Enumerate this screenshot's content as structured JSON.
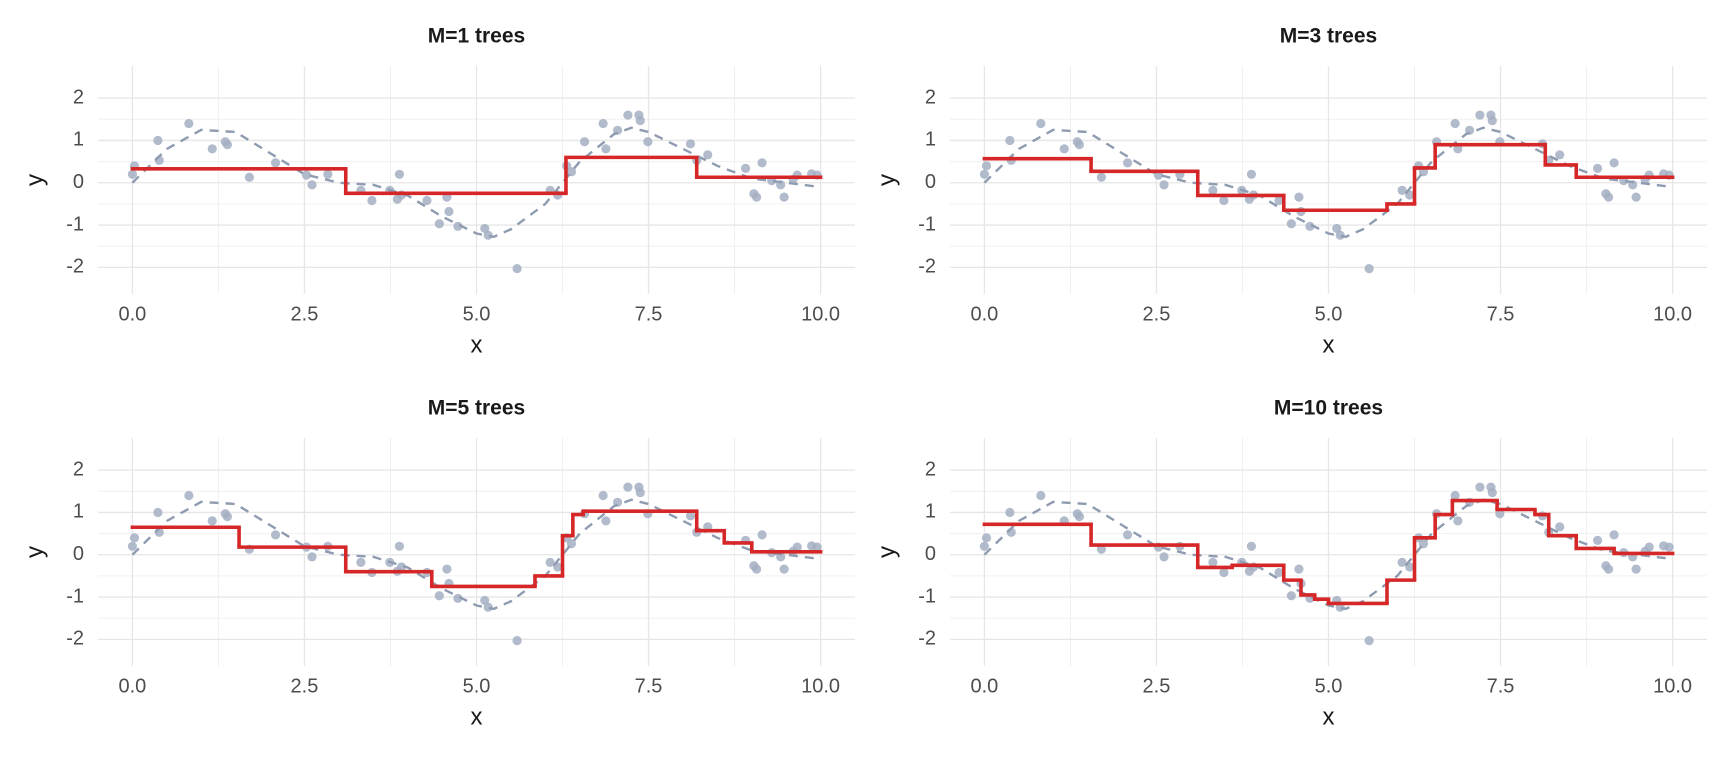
{
  "chart_data": [
    {
      "type": "line",
      "title": "M=1 trees",
      "x_label": "x",
      "y_label": "y",
      "grid": true,
      "xlim": [
        -0.5,
        10.5
      ],
      "ylim": [
        -2.63,
        2.76
      ],
      "xticks": [
        {
          "value": 0,
          "label": "0.0"
        },
        {
          "value": 2.5,
          "label": "2.5"
        },
        {
          "value": 5,
          "label": "5.0"
        },
        {
          "value": 7.5,
          "label": "7.5"
        },
        {
          "value": 10,
          "label": "10.0"
        }
      ],
      "yticks": [
        -2,
        -1,
        0,
        1,
        2
      ],
      "series": [
        {
          "style": "points",
          "color": "#a3afc2",
          "x": [
            0.0,
            0.03,
            0.37,
            0.39,
            0.82,
            1.16,
            1.35,
            1.38,
            1.7,
            2.08,
            2.53,
            2.61,
            2.84,
            3.32,
            3.48,
            3.74,
            3.85,
            3.88,
            3.91,
            4.28,
            4.46,
            4.57,
            4.6,
            4.73,
            5.12,
            5.17,
            5.59,
            6.07,
            6.18,
            6.31,
            6.38,
            6.57,
            6.84,
            6.88,
            7.05,
            7.2,
            7.36,
            7.38,
            7.49,
            8.11,
            8.2,
            8.36,
            8.91,
            9.03,
            9.07,
            9.15,
            9.29,
            9.42,
            9.47,
            9.6,
            9.66,
            9.87,
            9.95
          ],
          "values": [
            0.2,
            0.4,
            1.0,
            0.53,
            1.4,
            0.8,
            0.97,
            0.9,
            0.13,
            0.47,
            0.18,
            -0.05,
            0.2,
            -0.18,
            -0.42,
            -0.18,
            -0.39,
            0.2,
            -0.29,
            -0.42,
            -0.97,
            -0.34,
            -0.68,
            -1.03,
            -1.08,
            -1.24,
            -2.03,
            -0.18,
            -0.29,
            0.4,
            0.26,
            0.97,
            1.4,
            0.8,
            1.24,
            1.6,
            1.6,
            1.47,
            0.97,
            0.92,
            0.53,
            0.66,
            0.34,
            -0.26,
            -0.34,
            0.47,
            0.05,
            -0.05,
            -0.34,
            0.08,
            0.18,
            0.21,
            0.18
          ]
        },
        {
          "style": "dashed",
          "color": "#8e9bb0",
          "x": [
            0,
            0.5,
            1,
            1.5,
            2,
            2.5,
            3,
            3.5,
            4,
            4.5,
            5,
            5.25,
            5.5,
            6,
            6.5,
            7,
            7.25,
            7.5,
            8,
            8.5,
            9,
            9.5,
            10
          ],
          "values": [
            0,
            0.8,
            1.25,
            1.2,
            0.7,
            0.2,
            0.0,
            -0.05,
            -0.3,
            -0.8,
            -1.2,
            -1.28,
            -1.1,
            -0.5,
            0.5,
            1.15,
            1.3,
            1.2,
            0.8,
            0.4,
            0.1,
            0.0,
            -0.1
          ]
        },
        {
          "style": "step",
          "color": "#d62728",
          "bins": [
            0,
            3.1,
            6.3,
            8.2,
            10
          ],
          "values": [
            0.33,
            -0.25,
            0.6,
            0.13
          ]
        }
      ]
    },
    {
      "type": "line",
      "title": "M=3 trees",
      "x_label": "x",
      "y_label": "y",
      "grid": true,
      "xlim": [
        -0.5,
        10.5
      ],
      "ylim": [
        -2.63,
        2.76
      ],
      "xticks": [
        {
          "value": 0,
          "label": "0.0"
        },
        {
          "value": 2.5,
          "label": "2.5"
        },
        {
          "value": 5,
          "label": "5.0"
        },
        {
          "value": 7.5,
          "label": "7.5"
        },
        {
          "value": 10,
          "label": "10.0"
        }
      ],
      "yticks": [
        -2,
        -1,
        0,
        1,
        2
      ],
      "series": [
        {
          "style": "points",
          "color": "#a3afc2",
          "x": [
            0.0,
            0.03,
            0.37,
            0.39,
            0.82,
            1.16,
            1.35,
            1.38,
            1.7,
            2.08,
            2.53,
            2.61,
            2.84,
            3.32,
            3.48,
            3.74,
            3.85,
            3.88,
            3.91,
            4.28,
            4.46,
            4.57,
            4.6,
            4.73,
            5.12,
            5.17,
            5.59,
            6.07,
            6.18,
            6.31,
            6.38,
            6.57,
            6.84,
            6.88,
            7.05,
            7.2,
            7.36,
            7.38,
            7.49,
            8.11,
            8.2,
            8.36,
            8.91,
            9.03,
            9.07,
            9.15,
            9.29,
            9.42,
            9.47,
            9.6,
            9.66,
            9.87,
            9.95
          ],
          "values": [
            0.2,
            0.4,
            1.0,
            0.53,
            1.4,
            0.8,
            0.97,
            0.9,
            0.13,
            0.47,
            0.18,
            -0.05,
            0.2,
            -0.18,
            -0.42,
            -0.18,
            -0.39,
            0.2,
            -0.29,
            -0.42,
            -0.97,
            -0.34,
            -0.68,
            -1.03,
            -1.08,
            -1.24,
            -2.03,
            -0.18,
            -0.29,
            0.4,
            0.26,
            0.97,
            1.4,
            0.8,
            1.24,
            1.6,
            1.6,
            1.47,
            0.97,
            0.92,
            0.53,
            0.66,
            0.34,
            -0.26,
            -0.34,
            0.47,
            0.05,
            -0.05,
            -0.34,
            0.08,
            0.18,
            0.21,
            0.18
          ]
        },
        {
          "style": "dashed",
          "color": "#8e9bb0",
          "x": [
            0,
            0.5,
            1,
            1.5,
            2,
            2.5,
            3,
            3.5,
            4,
            4.5,
            5,
            5.25,
            5.5,
            6,
            6.5,
            7,
            7.25,
            7.5,
            8,
            8.5,
            9,
            9.5,
            10
          ],
          "values": [
            0,
            0.8,
            1.25,
            1.2,
            0.7,
            0.2,
            0.0,
            -0.05,
            -0.3,
            -0.8,
            -1.2,
            -1.28,
            -1.1,
            -0.5,
            0.5,
            1.15,
            1.3,
            1.2,
            0.8,
            0.4,
            0.1,
            0.0,
            -0.1
          ]
        },
        {
          "style": "step",
          "color": "#d62728",
          "bins": [
            0,
            1.55,
            3.1,
            4.35,
            5.85,
            6.25,
            6.55,
            8.15,
            8.6,
            10
          ],
          "values": [
            0.57,
            0.27,
            -0.3,
            -0.65,
            -0.5,
            0.35,
            0.9,
            0.42,
            0.13
          ]
        }
      ]
    },
    {
      "type": "line",
      "title": "M=5 trees",
      "x_label": "x",
      "y_label": "y",
      "grid": true,
      "xlim": [
        -0.5,
        10.5
      ],
      "ylim": [
        -2.63,
        2.76
      ],
      "xticks": [
        {
          "value": 0,
          "label": "0.0"
        },
        {
          "value": 2.5,
          "label": "2.5"
        },
        {
          "value": 5,
          "label": "5.0"
        },
        {
          "value": 7.5,
          "label": "7.5"
        },
        {
          "value": 10,
          "label": "10.0"
        }
      ],
      "yticks": [
        -2,
        -1,
        0,
        1,
        2
      ],
      "series": [
        {
          "style": "points",
          "color": "#a3afc2",
          "x": [
            0.0,
            0.03,
            0.37,
            0.39,
            0.82,
            1.16,
            1.35,
            1.38,
            1.7,
            2.08,
            2.53,
            2.61,
            2.84,
            3.32,
            3.48,
            3.74,
            3.85,
            3.88,
            3.91,
            4.28,
            4.46,
            4.57,
            4.6,
            4.73,
            5.12,
            5.17,
            5.59,
            6.07,
            6.18,
            6.31,
            6.38,
            6.57,
            6.84,
            6.88,
            7.05,
            7.2,
            7.36,
            7.38,
            7.49,
            8.11,
            8.2,
            8.36,
            8.91,
            9.03,
            9.07,
            9.15,
            9.29,
            9.42,
            9.47,
            9.6,
            9.66,
            9.87,
            9.95
          ],
          "values": [
            0.2,
            0.4,
            1.0,
            0.53,
            1.4,
            0.8,
            0.97,
            0.9,
            0.13,
            0.47,
            0.18,
            -0.05,
            0.2,
            -0.18,
            -0.42,
            -0.18,
            -0.39,
            0.2,
            -0.29,
            -0.42,
            -0.97,
            -0.34,
            -0.68,
            -1.03,
            -1.08,
            -1.24,
            -2.03,
            -0.18,
            -0.29,
            0.4,
            0.26,
            0.97,
            1.4,
            0.8,
            1.24,
            1.6,
            1.6,
            1.47,
            0.97,
            0.92,
            0.53,
            0.66,
            0.34,
            -0.26,
            -0.34,
            0.47,
            0.05,
            -0.05,
            -0.34,
            0.08,
            0.18,
            0.21,
            0.18
          ]
        },
        {
          "style": "dashed",
          "color": "#8e9bb0",
          "x": [
            0,
            0.5,
            1,
            1.5,
            2,
            2.5,
            3,
            3.5,
            4,
            4.5,
            5,
            5.25,
            5.5,
            6,
            6.5,
            7,
            7.25,
            7.5,
            8,
            8.5,
            9,
            9.5,
            10
          ],
          "values": [
            0,
            0.8,
            1.25,
            1.2,
            0.7,
            0.2,
            0.0,
            -0.05,
            -0.3,
            -0.8,
            -1.2,
            -1.28,
            -1.1,
            -0.5,
            0.5,
            1.15,
            1.3,
            1.2,
            0.8,
            0.4,
            0.1,
            0.0,
            -0.1
          ]
        },
        {
          "style": "step",
          "color": "#d62728",
          "bins": [
            0,
            1.55,
            3.1,
            4.35,
            5.85,
            6.25,
            6.4,
            6.55,
            8.2,
            8.6,
            9.0,
            10
          ],
          "values": [
            0.65,
            0.18,
            -0.4,
            -0.75,
            -0.5,
            0.45,
            0.95,
            1.03,
            0.57,
            0.28,
            0.07
          ]
        }
      ]
    },
    {
      "type": "line",
      "title": "M=10 trees",
      "x_label": "x",
      "y_label": "y",
      "grid": true,
      "xlim": [
        -0.5,
        10.5
      ],
      "ylim": [
        -2.63,
        2.76
      ],
      "xticks": [
        {
          "value": 0,
          "label": "0.0"
        },
        {
          "value": 2.5,
          "label": "2.5"
        },
        {
          "value": 5,
          "label": "5.0"
        },
        {
          "value": 7.5,
          "label": "7.5"
        },
        {
          "value": 10,
          "label": "10.0"
        }
      ],
      "yticks": [
        -2,
        -1,
        0,
        1,
        2
      ],
      "series": [
        {
          "style": "points",
          "color": "#a3afc2",
          "x": [
            0.0,
            0.03,
            0.37,
            0.39,
            0.82,
            1.16,
            1.35,
            1.38,
            1.7,
            2.08,
            2.53,
            2.61,
            2.84,
            3.32,
            3.48,
            3.74,
            3.85,
            3.88,
            3.91,
            4.28,
            4.46,
            4.57,
            4.6,
            4.73,
            5.12,
            5.17,
            5.59,
            6.07,
            6.18,
            6.31,
            6.38,
            6.57,
            6.84,
            6.88,
            7.05,
            7.2,
            7.36,
            7.38,
            7.49,
            8.11,
            8.2,
            8.36,
            8.91,
            9.03,
            9.07,
            9.15,
            9.29,
            9.42,
            9.47,
            9.6,
            9.66,
            9.87,
            9.95
          ],
          "values": [
            0.2,
            0.4,
            1.0,
            0.53,
            1.4,
            0.8,
            0.97,
            0.9,
            0.13,
            0.47,
            0.18,
            -0.05,
            0.2,
            -0.18,
            -0.42,
            -0.18,
            -0.39,
            0.2,
            -0.29,
            -0.42,
            -0.97,
            -0.34,
            -0.68,
            -1.03,
            -1.08,
            -1.24,
            -2.03,
            -0.18,
            -0.29,
            0.4,
            0.26,
            0.97,
            1.4,
            0.8,
            1.24,
            1.6,
            1.6,
            1.47,
            0.97,
            0.92,
            0.53,
            0.66,
            0.34,
            -0.26,
            -0.34,
            0.47,
            0.05,
            -0.05,
            -0.34,
            0.08,
            0.18,
            0.21,
            0.18
          ]
        },
        {
          "style": "dashed",
          "color": "#8e9bb0",
          "x": [
            0,
            0.5,
            1,
            1.5,
            2,
            2.5,
            3,
            3.5,
            4,
            4.5,
            5,
            5.25,
            5.5,
            6,
            6.5,
            7,
            7.25,
            7.5,
            8,
            8.5,
            9,
            9.5,
            10
          ],
          "values": [
            0,
            0.8,
            1.25,
            1.2,
            0.7,
            0.2,
            0.0,
            -0.05,
            -0.3,
            -0.8,
            -1.2,
            -1.28,
            -1.1,
            -0.5,
            0.5,
            1.15,
            1.3,
            1.2,
            0.8,
            0.4,
            0.1,
            0.0,
            -0.1
          ]
        },
        {
          "style": "step",
          "color": "#d62728",
          "bins": [
            0,
            1.55,
            3.1,
            3.6,
            4.35,
            4.6,
            4.8,
            5.0,
            5.85,
            6.25,
            6.55,
            6.8,
            7.45,
            8.0,
            8.2,
            8.6,
            9.15,
            10
          ],
          "values": [
            0.72,
            0.23,
            -0.3,
            -0.25,
            -0.6,
            -0.95,
            -1.05,
            -1.15,
            -0.6,
            0.4,
            0.95,
            1.28,
            1.07,
            0.95,
            0.45,
            0.15,
            0.03
          ]
        }
      ]
    }
  ]
}
